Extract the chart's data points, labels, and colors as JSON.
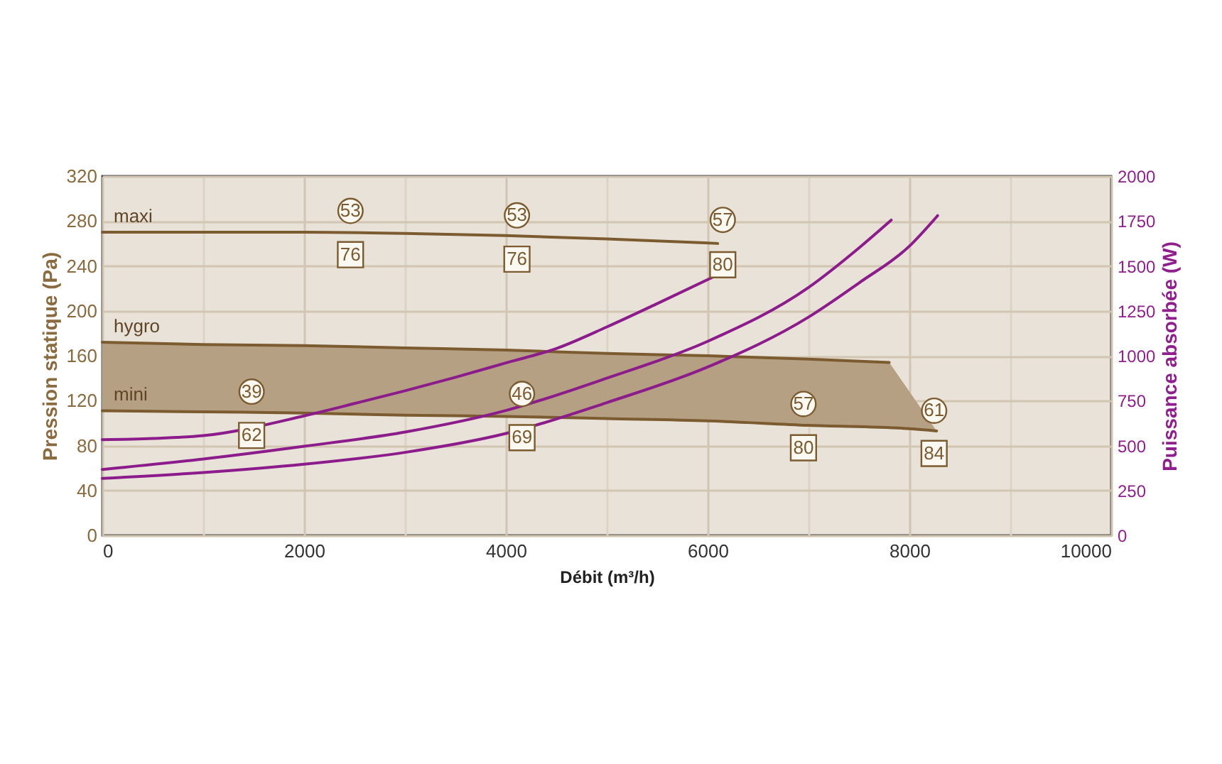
{
  "chart_data": {
    "type": "line",
    "xlabel": "Débit (m³/h)",
    "ylabel": "Pression statique (Pa)",
    "y2label": "Puissance absorbée (W)",
    "xlim": [
      0,
      10000
    ],
    "xticks": [
      0,
      {
        "value": 1000,
        "label": null
      },
      2000,
      {
        "value": 3000,
        "label": null
      },
      4000,
      {
        "value": 5000,
        "label": null
      },
      6000,
      {
        "value": 7000,
        "label": null
      },
      8000,
      {
        "value": 9000,
        "label": null
      },
      10000
    ],
    "ylim": [
      0,
      320
    ],
    "yticks": [
      0,
      40,
      80,
      120,
      160,
      200,
      240,
      280,
      320
    ],
    "y2lim": [
      0,
      2000
    ],
    "y2ticks": [
      0,
      250,
      500,
      750,
      1000,
      1250,
      1500,
      1750,
      2000
    ],
    "grid": true,
    "line_style": "solid",
    "series": [
      {
        "name": "maxi",
        "color": "#7b5b2f",
        "x": [
          0,
          1000,
          2000,
          3000,
          4000,
          5000,
          6100
        ],
        "values": [
          270,
          270,
          270,
          269,
          267,
          264,
          260
        ]
      },
      {
        "name": "hygro",
        "color": "#7b5b2f",
        "x": [
          0,
          1000,
          2000,
          3000,
          4000,
          5000,
          6000,
          7000,
          7800,
          8270
        ],
        "values": [
          172,
          170,
          169,
          167,
          165,
          162,
          160,
          157,
          154,
          null
        ],
        "upper": [
          172,
          170,
          169,
          167,
          165,
          162,
          160,
          157,
          154,
          93
        ],
        "lower": [
          111,
          110,
          109,
          107,
          106,
          104,
          102,
          98,
          95,
          93
        ]
      },
      {
        "name": "mini",
        "color": "#7b5b2f",
        "x": [
          0,
          1000,
          2000,
          3000,
          4000,
          5000,
          6000,
          7000,
          8000,
          8270
        ],
        "values": [
          111,
          110,
          109,
          107,
          106,
          104,
          102,
          98,
          95,
          93
        ]
      },
      {
        "axis": "y2",
        "color": "#8c1c8c",
        "x": [
          0,
          500,
          1000,
          2000,
          2500,
          3000,
          3500,
          4000,
          4500,
          5000,
          5500,
          6060
        ],
        "values": [
          533,
          540,
          555,
          665,
          734,
          805,
          880,
          960,
          1040,
          1160,
          1290,
          1440
        ]
      },
      {
        "axis": "y2",
        "color": "#8c1c8c",
        "x": [
          0,
          1000,
          2000,
          3000,
          4000,
          5000,
          6000,
          7000,
          7500,
          7820
        ],
        "values": [
          367,
          425,
          496,
          575,
          695,
          875,
          1080,
          1380,
          1600,
          1755
        ]
      },
      {
        "axis": "y2",
        "color": "#8c1c8c",
        "x": [
          0,
          1000,
          2000,
          3000,
          4000,
          5000,
          6000,
          7000,
          7500,
          8000,
          8280
        ],
        "values": [
          317,
          350,
          396,
          462,
          567,
          739,
          937,
          1215,
          1405,
          1610,
          1780
        ]
      }
    ],
    "annotations": [
      {
        "text": "53",
        "x": 2460,
        "y": 289
      },
      {
        "text": "76",
        "x": 2460,
        "y": 250
      },
      {
        "text": "53",
        "x": 4110,
        "y": 285
      },
      {
        "text": "76",
        "x": 4110,
        "y": 246
      },
      {
        "text": "57",
        "x": 6150,
        "y": 281
      },
      {
        "text": "80",
        "x": 6150,
        "y": 241
      },
      {
        "text": "39",
        "x": 1480,
        "y": 128
      },
      {
        "text": "62",
        "x": 1480,
        "y": 89
      },
      {
        "text": "46",
        "x": 4160,
        "y": 126
      },
      {
        "text": "69",
        "x": 4160,
        "y": 87
      },
      {
        "text": "57",
        "x": 6950,
        "y": 117
      },
      {
        "text": "80",
        "x": 6950,
        "y": 78
      },
      {
        "text": "61",
        "x": 8245,
        "y": 111
      },
      {
        "text": "84",
        "x": 8245,
        "y": 73
      }
    ]
  }
}
